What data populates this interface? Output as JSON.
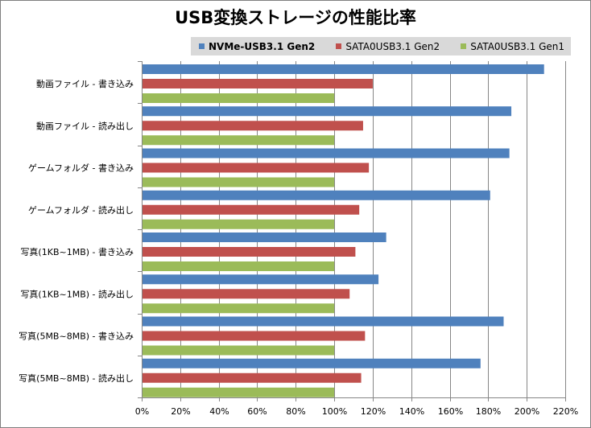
{
  "chart_data": {
    "type": "bar",
    "orientation": "horizontal",
    "title": "USB変換ストレージの性能比率",
    "categories": [
      "動画ファイル  - 書き込み",
      "動画ファイル  - 読み出し",
      "ゲームフォルダ  - 書き込み",
      "ゲームフォルダ  - 読み出し",
      "写真(1KB~1MB) - 書き込み",
      "写真(1KB~1MB) - 読み出し",
      "写真(5MB~8MB) - 書き込み",
      "写真(5MB~8MB) - 読み出し"
    ],
    "series": [
      {
        "name": "NVMe-USB3.1 Gen2",
        "color": "#4f81bd",
        "values": [
          209,
          192,
          191,
          181,
          127,
          123,
          188,
          176
        ]
      },
      {
        "name": "SATA0USB3.1 Gen2",
        "color": "#c0504d",
        "values": [
          120,
          115,
          118,
          113,
          111,
          108,
          116,
          114
        ]
      },
      {
        "name": "SATA0USB3.1 Gen1",
        "color": "#9bbb59",
        "values": [
          100,
          100,
          100,
          100,
          100,
          100,
          100,
          100
        ]
      }
    ],
    "xlim": [
      0,
      220
    ],
    "xticks": [
      "0%",
      "20%",
      "40%",
      "60%",
      "80%",
      "100%",
      "120%",
      "140%",
      "160%",
      "180%",
      "200%",
      "220%"
    ],
    "xlabel": "",
    "ylabel": "",
    "grid": true,
    "legend": "top-right"
  }
}
